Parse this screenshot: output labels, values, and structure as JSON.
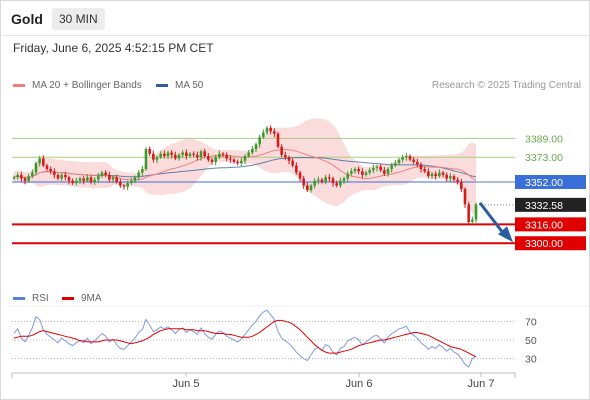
{
  "app": {
    "symbol": "Gold",
    "timeframe": "30 MIN",
    "datetime": "Friday, June 6, 2025 4:52:15 PM CET",
    "credit": "Research © 2025 Trading Central"
  },
  "legend": [
    {
      "label": "MA 20 + Bollinger Bands",
      "color": "#f08080"
    },
    {
      "label": "MA 50",
      "color": "#2c5f9e"
    }
  ],
  "rsi_legend": [
    {
      "label": "RSI",
      "color": "#5b7fd6"
    },
    {
      "label": "9MA",
      "color": "#e00000"
    }
  ],
  "colors": {
    "up": "#3a9a2a",
    "down": "#d61a1a",
    "resistance": "#a6cf7e",
    "support": "#e00000",
    "pivot": "#3b6fd8",
    "arrow": "#2a5d9f",
    "bands": "#fadcdc"
  },
  "chart_data": [
    {
      "type": "candlestick",
      "ylim": [
        3290,
        3425
      ],
      "x_ticks": [
        "Jun 5",
        "Jun 6",
        "Jun 7"
      ],
      "levels": [
        {
          "label": "3389.00",
          "value": 3389,
          "kind": "resistance"
        },
        {
          "label": "3373.00",
          "value": 3373,
          "kind": "resistance"
        },
        {
          "label": "3352.00",
          "value": 3352,
          "kind": "pivot"
        },
        {
          "label": "3316.00",
          "value": 3316,
          "kind": "support"
        },
        {
          "label": "3300.00",
          "value": 3300,
          "kind": "support"
        }
      ],
      "last_price": {
        "label": "3332.58",
        "value": 3332.58
      },
      "close": [
        3356,
        3358,
        3355,
        3353,
        3357,
        3360,
        3368,
        3372,
        3366,
        3363,
        3361,
        3358,
        3355,
        3358,
        3356,
        3353,
        3351,
        3353,
        3355,
        3353,
        3356,
        3352,
        3354,
        3357,
        3360,
        3358,
        3354,
        3356,
        3352,
        3349,
        3348,
        3351,
        3353,
        3356,
        3360,
        3363,
        3380,
        3376,
        3371,
        3373,
        3376,
        3374,
        3377,
        3375,
        3372,
        3375,
        3377,
        3374,
        3376,
        3375,
        3373,
        3378,
        3374,
        3371,
        3369,
        3373,
        3376,
        3375,
        3372,
        3371,
        3369,
        3368,
        3370,
        3374,
        3377,
        3380,
        3384,
        3390,
        3394,
        3398,
        3395,
        3393,
        3382,
        3375,
        3373,
        3370,
        3366,
        3360,
        3355,
        3349,
        3345,
        3349,
        3353,
        3354,
        3352,
        3356,
        3355,
        3351,
        3349,
        3353,
        3355,
        3359,
        3361,
        3363,
        3361,
        3358,
        3360,
        3362,
        3364,
        3365,
        3362,
        3359,
        3363,
        3366,
        3368,
        3371,
        3373,
        3374,
        3371,
        3369,
        3367,
        3363,
        3361,
        3357,
        3359,
        3357,
        3360,
        3358,
        3355,
        3357,
        3354,
        3352,
        3346,
        3333,
        3318,
        3320,
        3333
      ],
      "rsi": [
        {
          "name": "RSI",
          "values": [
            57,
            62,
            52,
            48,
            55,
            63,
            75,
            72,
            61,
            56,
            53,
            50,
            47,
            52,
            49,
            46,
            44,
            47,
            50,
            47,
            52,
            46,
            49,
            53,
            57,
            54,
            48,
            51,
            45,
            41,
            40,
            44,
            48,
            52,
            58,
            61,
            72,
            66,
            59,
            61,
            64,
            62,
            64,
            61,
            57,
            61,
            63,
            58,
            61,
            59,
            56,
            63,
            57,
            53,
            51,
            56,
            60,
            58,
            54,
            52,
            50,
            48,
            51,
            56,
            61,
            66,
            70,
            76,
            80,
            82,
            77,
            72,
            59,
            52,
            49,
            46,
            42,
            37,
            33,
            30,
            28,
            34,
            40,
            42,
            39,
            45,
            43,
            37,
            34,
            41,
            43,
            49,
            51,
            53,
            50,
            45,
            48,
            51,
            54,
            55,
            51,
            47,
            53,
            57,
            59,
            62,
            63,
            65,
            58,
            55,
            52,
            47,
            44,
            40,
            43,
            41,
            45,
            42,
            38,
            41,
            37,
            35,
            30,
            24,
            21,
            30,
            33
          ]
        },
        {
          "name": "9MA",
          "values": [
            52,
            53,
            54,
            54,
            54,
            55,
            57,
            59,
            60,
            59,
            58,
            57,
            56,
            55,
            54,
            53,
            52,
            51,
            49,
            49,
            48,
            48,
            48,
            48,
            49,
            50,
            50,
            50,
            50,
            49,
            48,
            47,
            46,
            47,
            48,
            49,
            51,
            53,
            56,
            58,
            60,
            61,
            62,
            62,
            62,
            62,
            62,
            61,
            61,
            61,
            60,
            60,
            60,
            59,
            58,
            57,
            57,
            57,
            56,
            56,
            55,
            54,
            53,
            53,
            53,
            54,
            56,
            58,
            61,
            64,
            67,
            70,
            71,
            71,
            70,
            69,
            67,
            64,
            61,
            57,
            53,
            49,
            45,
            42,
            39,
            37,
            36,
            36,
            36,
            37,
            38,
            39,
            40,
            42,
            44,
            45,
            46,
            47,
            48,
            49,
            50,
            50,
            51,
            52,
            53,
            54,
            55,
            56,
            57,
            58,
            58,
            57,
            56,
            55,
            53,
            51,
            49,
            47,
            45,
            43,
            42,
            41,
            40,
            38,
            36,
            34,
            32
          ]
        }
      ],
      "rsi_ylim": [
        20,
        80
      ],
      "rsi_levels": [
        {
          "label": "70",
          "value": 70
        },
        {
          "label": "50",
          "value": 50
        },
        {
          "label": "30",
          "value": 30
        }
      ]
    }
  ]
}
